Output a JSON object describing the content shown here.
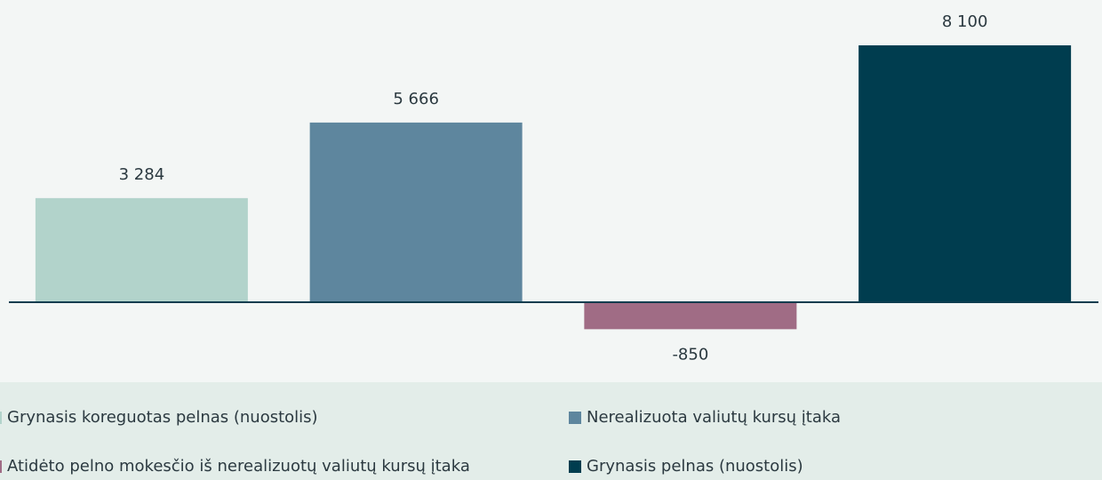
{
  "chart_data": {
    "type": "bar",
    "categories": [
      "Grynasis koreguotas pelnas (nuostolis)",
      "Nerealizuota valiutų kursų įtaka",
      "Atidėto pelno mokesčio iš nerealizuotų valiutų kursų įtaka",
      "Grynasis pelnas (nuostolis)"
    ],
    "values": [
      3284,
      5666,
      -850,
      8100
    ],
    "value_labels": [
      "3 284",
      "5 666",
      "-850",
      "8 100"
    ],
    "colors": [
      "#b2d3cb",
      "#5e869e",
      "#a06c85",
      "#003d4f"
    ],
    "ylim": [
      -2000,
      9000
    ]
  }
}
